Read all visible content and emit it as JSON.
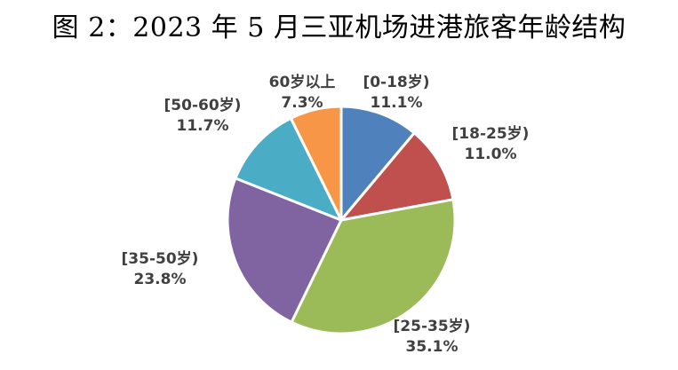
{
  "title": "图 2：2023 年 5 月三亚机场进港旅客年龄结构",
  "chart_data": {
    "type": "pie",
    "title": "图 2：2023 年 5 月三亚机场进港旅客年龄结构",
    "start_angle_deg": 0,
    "direction": "clockwise",
    "slices": [
      {
        "label": "[0-18岁)",
        "value": 11.1,
        "value_label": "11.1%",
        "color": "#4F81BD"
      },
      {
        "label": "[18-25岁)",
        "value": 11.0,
        "value_label": "11.0%",
        "color": "#C0504D"
      },
      {
        "label": "[25-35岁)",
        "value": 35.1,
        "value_label": "35.1%",
        "color": "#9BBB59"
      },
      {
        "label": "[35-50岁)",
        "value": 23.8,
        "value_label": "23.8%",
        "color": "#8064A2"
      },
      {
        "label": "[50-60岁)",
        "value": 11.7,
        "value_label": "11.7%",
        "color": "#4BACC6"
      },
      {
        "label": "60岁以上",
        "value": 7.3,
        "value_label": "7.3%",
        "color": "#F79646"
      }
    ]
  }
}
